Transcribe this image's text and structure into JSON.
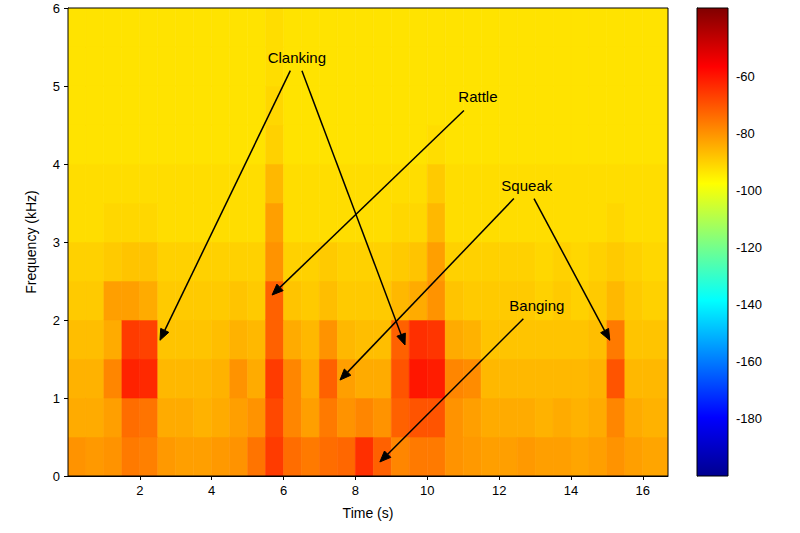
{
  "chart_data": {
    "type": "heatmap",
    "xlabel": "Time (s)",
    "ylabel": "Frequency (kHz)",
    "xlim": [
      0,
      16.7
    ],
    "xticks": [
      2,
      4,
      6,
      8,
      10,
      12,
      14,
      16
    ],
    "ylim": [
      0,
      6
    ],
    "yticks": [
      0,
      1,
      2,
      3,
      4,
      5,
      6
    ],
    "grid": false,
    "colorbar": {
      "range": [
        -200,
        -36
      ],
      "ticks": [
        -180,
        -160,
        -140,
        -120,
        -100,
        -80,
        -60
      ]
    },
    "x_bins": [
      0,
      0.5,
      1,
      1.5,
      2,
      2.5,
      3,
      3.5,
      4,
      4.5,
      5,
      5.5,
      6,
      6.5,
      7,
      7.5,
      8,
      8.5,
      9,
      9.5,
      10,
      10.5,
      11,
      11.5,
      12,
      12.5,
      13,
      13.5,
      14,
      14.5,
      15,
      15.5,
      16,
      16.7
    ],
    "y_bins": [
      0,
      0.5,
      1,
      1.5,
      2,
      2.5,
      3,
      3.5,
      4,
      4.5,
      5,
      5.5,
      6
    ],
    "values": [
      [
        -80,
        -81,
        -80,
        -76,
        -77,
        -81,
        -82,
        -82,
        -81,
        -80,
        -75,
        -66,
        -74,
        -76,
        -74,
        -73,
        -64,
        -72,
        -78,
        -76,
        -76,
        -80,
        -81,
        -82,
        -82,
        -81,
        -82,
        -82,
        -83,
        -82,
        -80,
        -82,
        -83
      ],
      [
        -84,
        -84,
        -82,
        -74,
        -75,
        -84,
        -84,
        -85,
        -84,
        -82,
        -80,
        -68,
        -78,
        -82,
        -76,
        -80,
        -78,
        -80,
        -72,
        -70,
        -70,
        -80,
        -82,
        -84,
        -84,
        -84,
        -85,
        -84,
        -85,
        -84,
        -78,
        -84,
        -85
      ],
      [
        -85,
        -85,
        -78,
        -62,
        -63,
        -86,
        -86,
        -86,
        -85,
        -80,
        -84,
        -66,
        -78,
        -84,
        -72,
        -82,
        -84,
        -84,
        -70,
        -60,
        -61,
        -78,
        -79,
        -86,
        -86,
        -86,
        -86,
        -86,
        -86,
        -85,
        -70,
        -86,
        -86
      ],
      [
        -87,
        -87,
        -84,
        -66,
        -67,
        -88,
        -88,
        -88,
        -87,
        -85,
        -86,
        -72,
        -84,
        -86,
        -80,
        -86,
        -87,
        -87,
        -72,
        -64,
        -65,
        -84,
        -85,
        -88,
        -88,
        -88,
        -88,
        -88,
        -88,
        -87,
        -76,
        -88,
        -88
      ],
      [
        -89,
        -89,
        -82,
        -82,
        -84,
        -89,
        -89,
        -89,
        -89,
        -88,
        -89,
        -72,
        -88,
        -89,
        -87,
        -89,
        -89,
        -89,
        -86,
        -84,
        -80,
        -88,
        -89,
        -89,
        -89,
        -89,
        -90,
        -89,
        -90,
        -89,
        -86,
        -89,
        -90
      ],
      [
        -90,
        -90,
        -89,
        -88,
        -88,
        -90,
        -90,
        -90,
        -90,
        -90,
        -90,
        -80,
        -90,
        -90,
        -89,
        -90,
        -90,
        -90,
        -89,
        -88,
        -82,
        -90,
        -90,
        -90,
        -90,
        -90,
        -91,
        -90,
        -91,
        -90,
        -89,
        -90,
        -91
      ],
      [
        -92,
        -92,
        -91,
        -91,
        -91,
        -92,
        -92,
        -92,
        -92,
        -92,
        -92,
        -82,
        -92,
        -92,
        -92,
        -92,
        -92,
        -92,
        -91,
        -91,
        -86,
        -92,
        -92,
        -92,
        -92,
        -92,
        -92,
        -92,
        -92,
        -92,
        -91,
        -92,
        -92
      ],
      [
        -92,
        -92,
        -92,
        -92,
        -92,
        -92,
        -92,
        -92,
        -92,
        -92,
        -92,
        -86,
        -92,
        -92,
        -92,
        -92,
        -92,
        -92,
        -92,
        -92,
        -89,
        -92,
        -92,
        -92,
        -92,
        -92,
        -92,
        -92,
        -92,
        -92,
        -92,
        -92,
        -92
      ],
      [
        -93,
        -93,
        -93,
        -93,
        -93,
        -93,
        -93,
        -93,
        -93,
        -93,
        -93,
        -90,
        -93,
        -93,
        -93,
        -93,
        -93,
        -93,
        -93,
        -93,
        -92,
        -93,
        -93,
        -93,
        -93,
        -93,
        -93,
        -93,
        -93,
        -93,
        -93,
        -93,
        -93
      ],
      [
        -93,
        -93,
        -93,
        -93,
        -93,
        -93,
        -93,
        -93,
        -93,
        -93,
        -93,
        -91,
        -93,
        -93,
        -93,
        -93,
        -93,
        -93,
        -93,
        -93,
        -93,
        -93,
        -93,
        -93,
        -93,
        -93,
        -93,
        -93,
        -93,
        -93,
        -93,
        -93,
        -93
      ],
      [
        -93,
        -93,
        -93,
        -93,
        -93,
        -93,
        -93,
        -93,
        -93,
        -93,
        -93,
        -92,
        -93,
        -93,
        -93,
        -93,
        -93,
        -93,
        -93,
        -93,
        -93,
        -93,
        -93,
        -93,
        -93,
        -93,
        -93,
        -93,
        -93,
        -93,
        -93,
        -93,
        -93
      ],
      [
        -93,
        -93,
        -93,
        -93,
        -93,
        -93,
        -93,
        -93,
        -93,
        -93,
        -93,
        -92,
        -93,
        -93,
        -93,
        -93,
        -93,
        -93,
        -93,
        -93,
        -93,
        -93,
        -93,
        -93,
        -93,
        -93,
        -93,
        -93,
        -93,
        -93,
        -93,
        -93,
        -93
      ]
    ],
    "annotations": [
      {
        "text": "Clanking",
        "xy": [
          6.37,
          5.37
        ],
        "targets": [
          [
            2.56,
            1.74
          ],
          [
            9.38,
            1.68
          ]
        ]
      },
      {
        "text": "Rattle",
        "xy": [
          11.41,
          4.86
        ],
        "targets": [
          [
            5.68,
            2.32
          ]
        ]
      },
      {
        "text": "Squeak",
        "xy": [
          12.77,
          3.73
        ],
        "targets": [
          [
            7.57,
            1.23
          ],
          [
            15.08,
            1.74
          ]
        ]
      },
      {
        "text": "Banging",
        "xy": [
          13.05,
          2.19
        ],
        "targets": [
          [
            8.68,
            0.18
          ]
        ]
      }
    ]
  }
}
